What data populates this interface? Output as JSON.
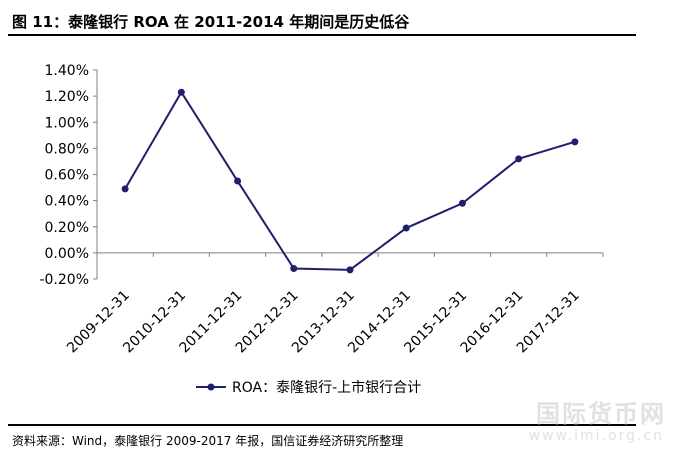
{
  "header": {
    "title": "图 11：泰隆银行 ROA 在 2011-2014 年期间是历史低谷"
  },
  "footer": {
    "source": "资料来源：Wind，泰隆银行 2009-2017 年报，国信证券经济研究所整理"
  },
  "watermark": {
    "text": "国际货币网",
    "url": "www.imi.org.cn"
  },
  "colors": {
    "series": "#1f1f6e",
    "axis": "#808080"
  },
  "chart_data": {
    "type": "line",
    "title": "",
    "xlabel": "",
    "ylabel": "",
    "categories": [
      "2009-12-31",
      "2010-12-31",
      "2011-12-31",
      "2012-12-31",
      "2013-12-31",
      "2014-12-31",
      "2015-12-31",
      "2016-12-31",
      "2017-12-31"
    ],
    "series": [
      {
        "name": "ROA：泰隆银行-上市银行合计",
        "values": [
          0.49,
          1.23,
          0.55,
          -0.12,
          -0.13,
          0.19,
          0.38,
          0.72,
          0.85
        ]
      }
    ],
    "ylim": [
      -0.2,
      1.4
    ],
    "yticks": [
      1.4,
      1.2,
      1.0,
      0.8,
      0.6,
      0.4,
      0.2,
      0.0,
      -0.2
    ],
    "ytick_labels": [
      "1.40%",
      "1.20%",
      "1.00%",
      "0.80%",
      "0.60%",
      "0.40%",
      "0.20%",
      "0.00%",
      "-0.20%"
    ],
    "y_unit": "%",
    "grid": false,
    "legend_position": "bottom"
  }
}
